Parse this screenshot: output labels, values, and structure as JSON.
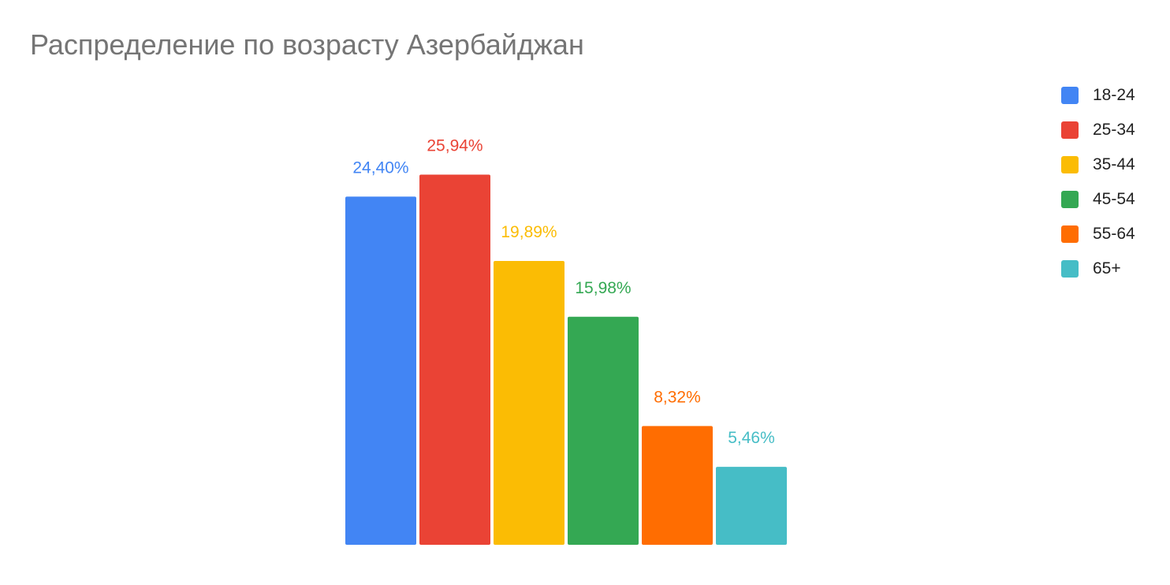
{
  "chart_data": {
    "type": "bar",
    "title": "Распределение по возрасту Азербайджан",
    "categories": [
      "18-24",
      "25-34",
      "35-44",
      "45-54",
      "55-64",
      "65+"
    ],
    "values": [
      24.4,
      25.94,
      19.89,
      15.98,
      8.32,
      5.46
    ],
    "data_labels": [
      "24,40%",
      "25,94%",
      "19,89%",
      "15,98%",
      "8,32%",
      "5,46%"
    ],
    "colors": [
      "#4285F4",
      "#EA4335",
      "#FBBC04",
      "#34A853",
      "#FF6D01",
      "#46BDC6"
    ],
    "ylim": [
      0,
      30
    ],
    "xlabel": "",
    "ylabel": "",
    "grid": false,
    "legend_position": "right"
  }
}
